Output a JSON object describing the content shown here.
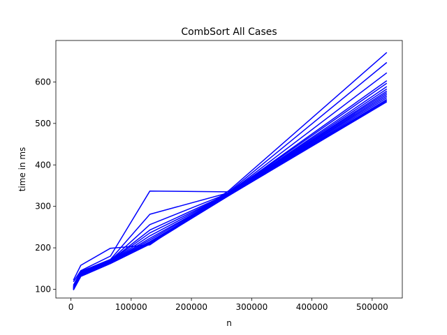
{
  "chart_data": {
    "type": "line",
    "title": "CombSort All Cases",
    "xlabel": "n",
    "ylabel": "time in ms",
    "xlim": [
      -25000,
      550000
    ],
    "ylim": [
      79,
      700
    ],
    "xticks": [
      0,
      100000,
      200000,
      300000,
      400000,
      500000
    ],
    "xtick_labels": [
      "0",
      "100000",
      "200000",
      "300000",
      "400000",
      "500000"
    ],
    "yticks": [
      100,
      200,
      300,
      400,
      500,
      600
    ],
    "ytick_labels": [
      "100",
      "200",
      "300",
      "400",
      "500",
      "600"
    ],
    "grid": false,
    "legend": "none",
    "line_color": "#0000ff",
    "x": [
      4096,
      16384,
      65536,
      131072,
      262144,
      524288
    ],
    "series": [
      {
        "values": [
          122,
          158,
          199,
          207,
          338,
          671
        ]
      },
      {
        "values": [
          118,
          145,
          180,
          337,
          335,
          647
        ]
      },
      {
        "values": [
          110,
          143,
          172,
          281,
          333,
          622
        ]
      },
      {
        "values": [
          108,
          141,
          170,
          256,
          332,
          603
        ]
      },
      {
        "values": [
          106,
          140,
          169,
          243,
          331,
          597
        ]
      },
      {
        "values": [
          105,
          139,
          168,
          236,
          330,
          589
        ]
      },
      {
        "values": [
          104,
          138,
          167,
          229,
          330,
          583
        ]
      },
      {
        "values": [
          103,
          137,
          166,
          223,
          329,
          578
        ]
      },
      {
        "values": [
          102,
          136,
          165,
          219,
          329,
          574
        ]
      },
      {
        "values": [
          101,
          135,
          165,
          215,
          328,
          570
        ]
      },
      {
        "values": [
          100,
          134,
          164,
          213,
          328,
          566
        ]
      },
      {
        "values": [
          100,
          133,
          164,
          212,
          327,
          562
        ]
      },
      {
        "values": [
          99,
          132,
          163,
          211,
          327,
          558
        ]
      },
      {
        "values": [
          99,
          132,
          163,
          210,
          326,
          555
        ]
      },
      {
        "values": [
          98,
          131,
          162,
          209,
          326,
          552
        ]
      }
    ]
  }
}
